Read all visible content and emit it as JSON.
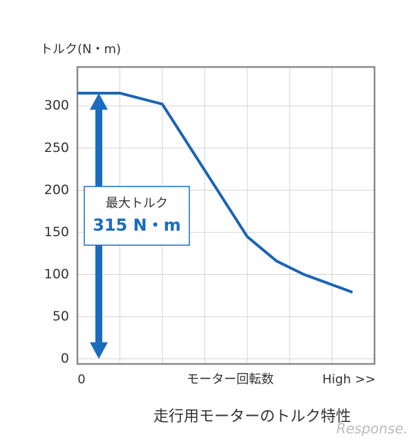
{
  "chart_data": {
    "type": "line",
    "title": "走行用モーターのトルク特性",
    "y_label": "トルク(N・m)",
    "watermark": "Response.",
    "x": [
      0,
      1,
      2,
      4,
      4.69,
      5.34,
      5.67,
      6.48
    ],
    "series": [
      {
        "name": "トルク",
        "color": "#1a64b4",
        "values": [
          315,
          315,
          302,
          145,
          116,
          100,
          94,
          79
        ]
      }
    ],
    "xlim": [
      0,
      7
    ],
    "xticks": [
      0,
      {
        "value": 3.6,
        "label": "モーター回転数"
      },
      {
        "value": 6.4,
        "label": "High >>"
      }
    ],
    "x_gridlines": [
      1,
      2,
      3,
      4,
      5,
      6
    ],
    "ylim": [
      -6,
      346
    ],
    "yticks": [
      0,
      50,
      100,
      150,
      200,
      250,
      300
    ],
    "grid": true,
    "annotation": {
      "title": "最大トルク",
      "value": 315,
      "value_label": "315 N・m",
      "color": "#1a6cc0"
    }
  }
}
